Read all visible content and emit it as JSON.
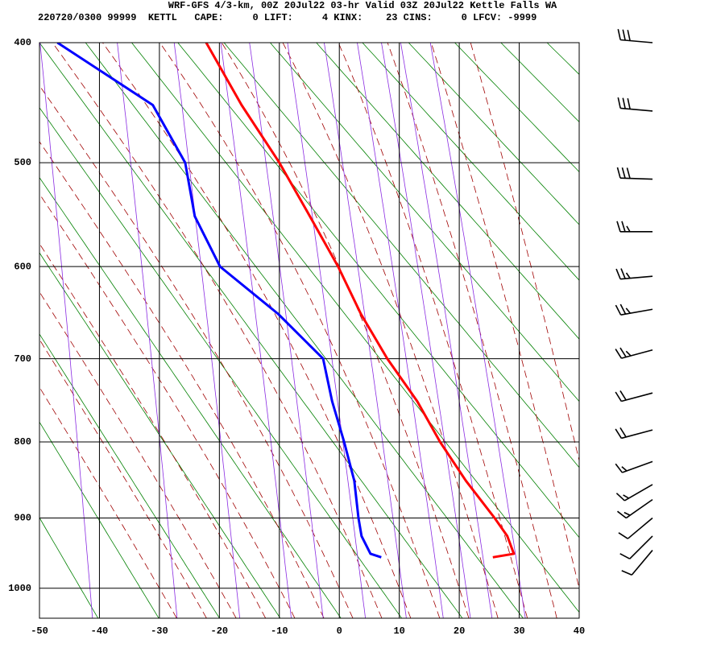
{
  "chart_data": {
    "type": "sounding",
    "title": "WRF-GFS 4/3-km, 00Z 20Jul22 03-hr Valid 03Z 20Jul22 Kettle Falls WA",
    "subtitle": "220720/0300 99999  KETTL   CAPE:     0 LIFT:     4 KINX:    23 CINS:     0 LFCV: -9999",
    "pressure": [
      400,
      450,
      500,
      550,
      600,
      650,
      700,
      750,
      800,
      850,
      900,
      925,
      950,
      955
    ],
    "series": [
      {
        "name": "temperature",
        "color": "#ff0000",
        "values": [
          -22.2,
          -16.3,
          -10.0,
          -4.9,
          -0.2,
          3.6,
          8.0,
          13.0,
          16.8,
          21.1,
          25.9,
          28.0,
          29.1,
          25.6
        ]
      },
      {
        "name": "dewpoint",
        "color": "#0000ff",
        "values": [
          -47.0,
          -31.1,
          -25.7,
          -24.1,
          -19.9,
          -10.2,
          -2.7,
          -1.2,
          0.8,
          2.5,
          3.2,
          3.7,
          5.2,
          7.0
        ]
      }
    ],
    "wind_barbs": {
      "pressure": [
        400,
        455,
        515,
        565,
        610,
        645,
        690,
        740,
        785,
        825,
        855,
        875,
        900,
        925,
        945
      ],
      "speed": [
        30,
        30,
        30,
        25,
        25,
        25,
        25,
        20,
        20,
        15,
        15,
        15,
        10,
        10,
        10
      ],
      "direction": [
        275,
        275,
        272,
        270,
        265,
        260,
        255,
        255,
        255,
        250,
        240,
        235,
        230,
        225,
        220
      ]
    },
    "xlim": [
      -50,
      40
    ],
    "xticks": [
      -50,
      -40,
      -30,
      -20,
      -10,
      0,
      10,
      20,
      30,
      40
    ],
    "ylim": [
      400,
      1045
    ],
    "yticks": [
      400,
      500,
      600,
      700,
      800,
      900,
      1000
    ],
    "grid": true
  }
}
